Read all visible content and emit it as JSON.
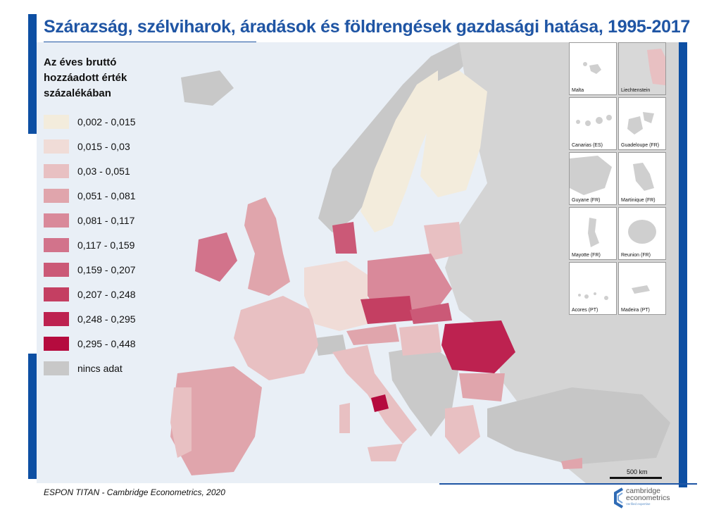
{
  "title": "Szárazság, szélviharok, áradások és földrengések gazdasági hatása, 1995-2017",
  "legend": {
    "title": "Az éves bruttó hozzáadott érték százalékában",
    "items": [
      {
        "label": "0,002 - 0,015",
        "color": "#f3ecdc"
      },
      {
        "label": "0,015 - 0,03",
        "color": "#f0dcd7"
      },
      {
        "label": "0,03 - 0,051",
        "color": "#e8c0c2"
      },
      {
        "label": "0,051 - 0,081",
        "color": "#e0a5ac"
      },
      {
        "label": "0,081 - 0,117",
        "color": "#d9899a"
      },
      {
        "label": "0,117 - 0,159",
        "color": "#d2738b"
      },
      {
        "label": "0,159 - 0,207",
        "color": "#cb5977"
      },
      {
        "label": "0,207 - 0,248",
        "color": "#c43f62"
      },
      {
        "label": "0,248 - 0,295",
        "color": "#bd2250"
      },
      {
        "label": "0,295 - 0,448",
        "color": "#b50b3e"
      },
      {
        "label": "nincs adat",
        "color": "#c8c8c8"
      }
    ]
  },
  "insets": [
    {
      "label": "Malta"
    },
    {
      "label": "Liechtenstein"
    },
    {
      "label": "Canarias (ES)"
    },
    {
      "label": "Guadeloupe (FR)"
    },
    {
      "label": "Guyane (FR)"
    },
    {
      "label": "Martinique (FR)"
    },
    {
      "label": "Mayotte (FR)"
    },
    {
      "label": "Reunion (FR)"
    },
    {
      "label": "Acores (PT)"
    },
    {
      "label": "Madeira (PT)"
    }
  ],
  "scale": {
    "label": "500 km"
  },
  "source": "ESPON TITAN - Cambridge Econometrics, 2020",
  "logo": {
    "line1": "cambridge",
    "line2": "econometrics",
    "tagline": "Verified expertise"
  }
}
